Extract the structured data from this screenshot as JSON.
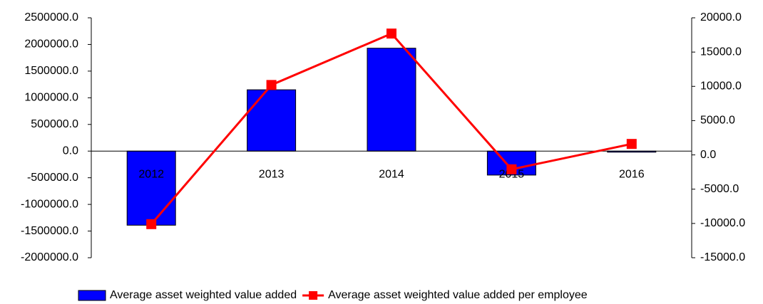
{
  "chart_data": {
    "type": "bar-line",
    "categories": [
      "2012",
      "2013",
      "2014",
      "2015",
      "2016"
    ],
    "series": [
      {
        "name": "Average asset weighted value added",
        "type": "bar",
        "color": "#0000ff",
        "values": [
          -1390000,
          1150000,
          1930000,
          -450000,
          -20000
        ]
      },
      {
        "name": "Average asset weighted value added per employee",
        "type": "line",
        "color": "#ff0000",
        "axis": "y2",
        "values": [
          -10100,
          10200,
          17700,
          -2100,
          1600
        ]
      }
    ],
    "ylim": [
      -2000000,
      2500000
    ],
    "yticks": [
      {
        "value": -2000000,
        "label": "-2000000.0"
      },
      {
        "value": -1500000,
        "label": "-1500000.0"
      },
      {
        "value": -1000000,
        "label": "-1000000.0"
      },
      {
        "value": -500000,
        "label": "-500000.0"
      },
      {
        "value": 0,
        "label": "0.0"
      },
      {
        "value": 500000,
        "label": "500000.0"
      },
      {
        "value": 1000000,
        "label": "1000000.0"
      },
      {
        "value": 1500000,
        "label": "1500000.0"
      },
      {
        "value": 2000000,
        "label": "2000000.0"
      },
      {
        "value": 2500000,
        "label": "2500000.0"
      }
    ],
    "y2lim": [
      -15000,
      20000
    ],
    "y2ticks": [
      {
        "value": -15000,
        "label": "-15000.0"
      },
      {
        "value": -10000,
        "label": "-10000.0"
      },
      {
        "value": -5000,
        "label": "-5000.0"
      },
      {
        "value": 0,
        "label": "0.0"
      },
      {
        "value": 5000,
        "label": "5000.0"
      },
      {
        "value": 10000,
        "label": "10000.0"
      },
      {
        "value": 15000,
        "label": "15000.0"
      },
      {
        "value": 20000,
        "label": "20000.0"
      }
    ],
    "legend": "bottom"
  }
}
